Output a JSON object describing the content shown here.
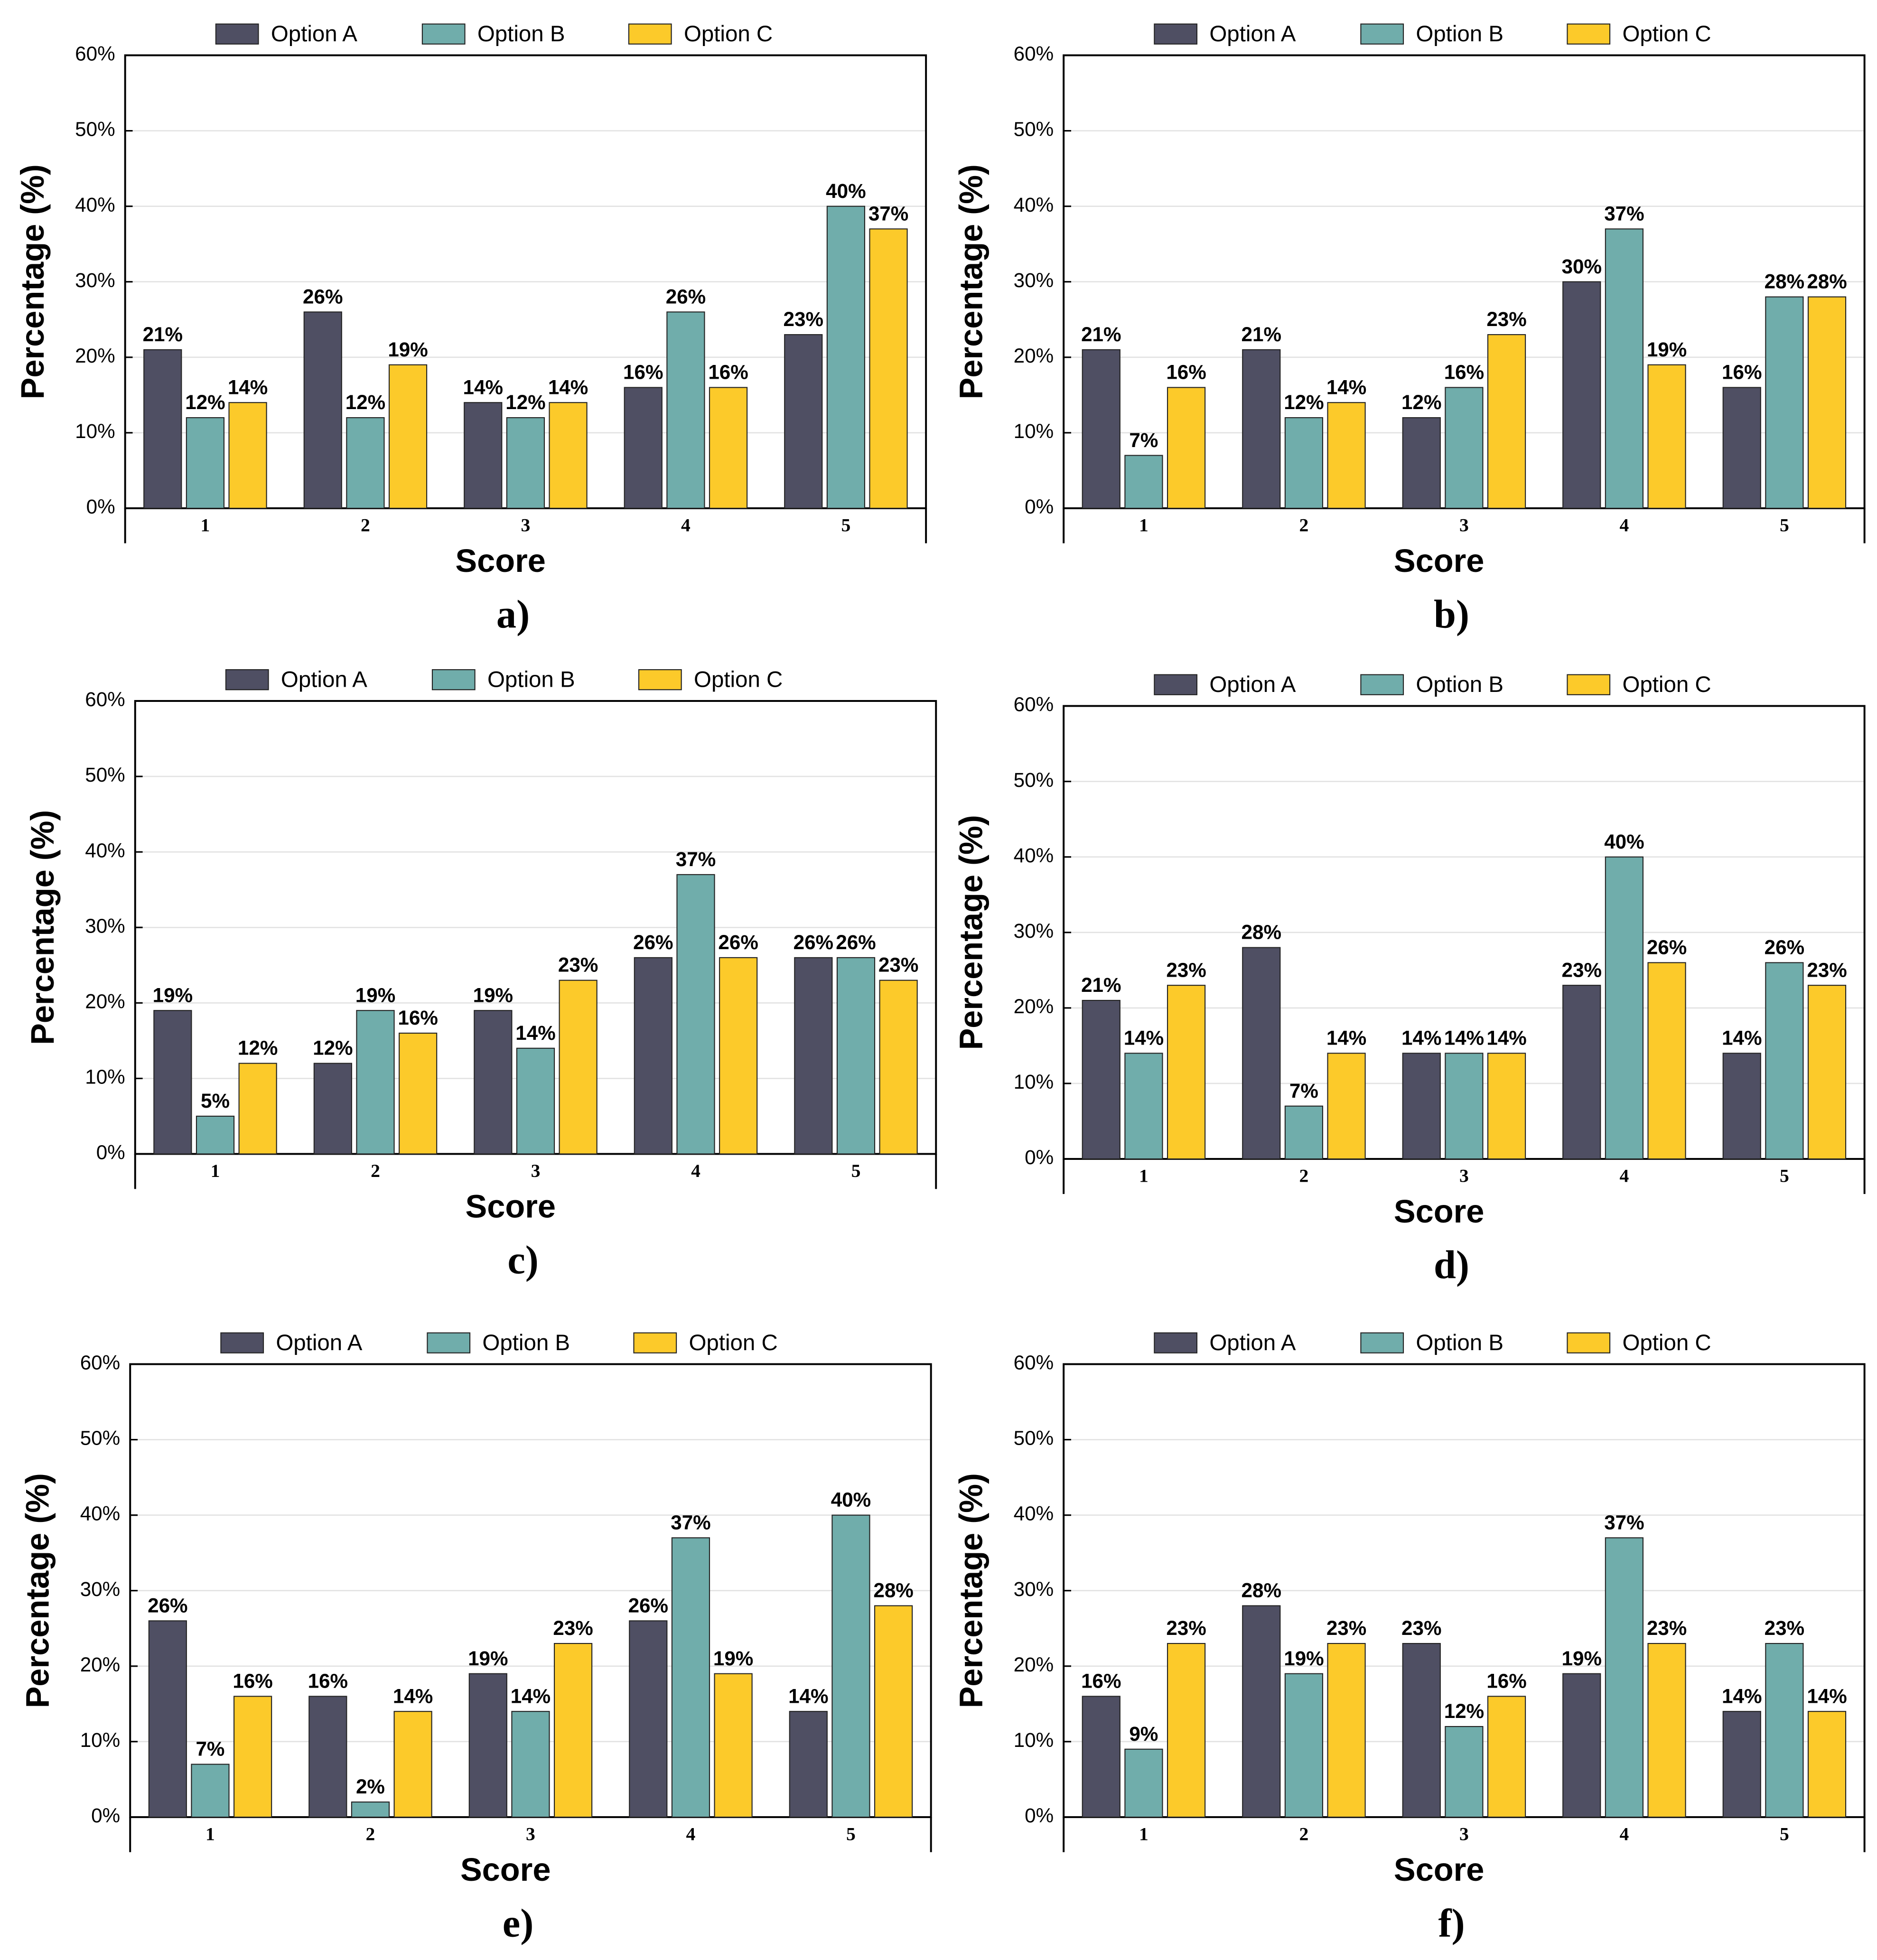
{
  "chart_data": [
    {
      "type": "bar",
      "panel": "a)",
      "xlabel": "Score",
      "ylabel": "Percentage (%)",
      "legend": "top",
      "grid": true,
      "categories": [
        "1",
        "2",
        "3",
        "4",
        "5"
      ],
      "ylim": [
        0,
        60
      ],
      "yticks": [
        {
          "value": 0,
          "label": "0%"
        },
        {
          "value": 10,
          "label": "10%"
        },
        {
          "value": 20,
          "label": "20%"
        },
        {
          "value": 30,
          "label": "30%"
        },
        {
          "value": 40,
          "label": "40%"
        },
        {
          "value": 50,
          "label": "50%"
        },
        {
          "value": 60,
          "label": "60%"
        }
      ],
      "series": [
        {
          "name": "Option A",
          "color": "#4f4f63",
          "values": [
            21,
            26,
            14,
            16,
            23
          ],
          "value_labels": [
            "21%",
            "26%",
            "14%",
            "16%",
            "23%"
          ]
        },
        {
          "name": "Option B",
          "color": "#70adab",
          "values": [
            12,
            12,
            12,
            26,
            40
          ],
          "value_labels": [
            "12%",
            "12%",
            "12%",
            "26%",
            "40%"
          ]
        },
        {
          "name": "Option C",
          "color": "#fcca2a",
          "values": [
            14,
            19,
            14,
            16,
            37
          ],
          "value_labels": [
            "14%",
            "19%",
            "14%",
            "16%",
            "37%"
          ]
        }
      ]
    },
    {
      "type": "bar",
      "panel": "b)",
      "xlabel": "Score",
      "ylabel": "Percentage (%)",
      "legend": "top",
      "grid": true,
      "categories": [
        "1",
        "2",
        "3",
        "4",
        "5"
      ],
      "ylim": [
        0,
        60
      ],
      "yticks": [
        {
          "value": 0,
          "label": "0%"
        },
        {
          "value": 10,
          "label": "10%"
        },
        {
          "value": 20,
          "label": "20%"
        },
        {
          "value": 30,
          "label": "30%"
        },
        {
          "value": 40,
          "label": "40%"
        },
        {
          "value": 50,
          "label": "50%"
        },
        {
          "value": 60,
          "label": "60%"
        }
      ],
      "series": [
        {
          "name": "Option A",
          "color": "#4f4f63",
          "values": [
            21,
            21,
            12,
            30,
            16
          ],
          "value_labels": [
            "21%",
            "21%",
            "12%",
            "30%",
            "16%"
          ]
        },
        {
          "name": "Option B",
          "color": "#70adab",
          "values": [
            7,
            12,
            16,
            37,
            28
          ],
          "value_labels": [
            "7%",
            "12%",
            "16%",
            "37%",
            "28%"
          ]
        },
        {
          "name": "Option C",
          "color": "#fcca2a",
          "values": [
            16,
            14,
            23,
            19,
            28
          ],
          "value_labels": [
            "16%",
            "14%",
            "23%",
            "19%",
            "28%"
          ]
        }
      ]
    },
    {
      "type": "bar",
      "panel": "c)",
      "xlabel": "Score",
      "ylabel": "Percentage (%)",
      "legend": "top",
      "grid": true,
      "categories": [
        "1",
        "2",
        "3",
        "4",
        "5"
      ],
      "ylim": [
        0,
        60
      ],
      "yticks": [
        {
          "value": 0,
          "label": "0%"
        },
        {
          "value": 10,
          "label": "10%"
        },
        {
          "value": 20,
          "label": "20%"
        },
        {
          "value": 30,
          "label": "30%"
        },
        {
          "value": 40,
          "label": "40%"
        },
        {
          "value": 50,
          "label": "50%"
        },
        {
          "value": 60,
          "label": "60%"
        }
      ],
      "series": [
        {
          "name": "Option A",
          "color": "#4f4f63",
          "values": [
            19,
            12,
            19,
            26,
            26
          ],
          "value_labels": [
            "19%",
            "12%",
            "19%",
            "26%",
            "26%"
          ]
        },
        {
          "name": "Option B",
          "color": "#70adab",
          "values": [
            5,
            19,
            14,
            37,
            26
          ],
          "value_labels": [
            "5%",
            "19%",
            "14%",
            "37%",
            "26%"
          ]
        },
        {
          "name": "Option C",
          "color": "#fcca2a",
          "values": [
            12,
            16,
            23,
            26,
            23
          ],
          "value_labels": [
            "12%",
            "16%",
            "23%",
            "26%",
            "23%"
          ]
        }
      ]
    },
    {
      "type": "bar",
      "panel": "d)",
      "xlabel": "Score",
      "ylabel": "Percentage (%)",
      "legend": "top",
      "grid": true,
      "categories": [
        "1",
        "2",
        "3",
        "4",
        "5"
      ],
      "ylim": [
        0,
        60
      ],
      "yticks": [
        {
          "value": 0,
          "label": "0%"
        },
        {
          "value": 10,
          "label": "10%"
        },
        {
          "value": 20,
          "label": "20%"
        },
        {
          "value": 30,
          "label": "30%"
        },
        {
          "value": 40,
          "label": "40%"
        },
        {
          "value": 50,
          "label": "50%"
        },
        {
          "value": 60,
          "label": "60%"
        }
      ],
      "series": [
        {
          "name": "Option A",
          "color": "#4f4f63",
          "values": [
            21,
            28,
            14,
            23,
            14
          ],
          "value_labels": [
            "21%",
            "28%",
            "14%",
            "23%",
            "14%"
          ]
        },
        {
          "name": "Option B",
          "color": "#70adab",
          "values": [
            14,
            7,
            14,
            40,
            26
          ],
          "value_labels": [
            "14%",
            "7%",
            "14%",
            "40%",
            "26%"
          ]
        },
        {
          "name": "Option C",
          "color": "#fcca2a",
          "values": [
            23,
            14,
            14,
            26,
            23
          ],
          "value_labels": [
            "23%",
            "14%",
            "14%",
            "26%",
            "23%"
          ]
        }
      ]
    },
    {
      "type": "bar",
      "panel": "e)",
      "xlabel": "Score",
      "ylabel": "Percentage (%)",
      "legend": "top",
      "grid": true,
      "categories": [
        "1",
        "2",
        "3",
        "4",
        "5"
      ],
      "ylim": [
        0,
        60
      ],
      "yticks": [
        {
          "value": 0,
          "label": "0%"
        },
        {
          "value": 10,
          "label": "10%"
        },
        {
          "value": 20,
          "label": "20%"
        },
        {
          "value": 30,
          "label": "30%"
        },
        {
          "value": 40,
          "label": "40%"
        },
        {
          "value": 50,
          "label": "50%"
        },
        {
          "value": 60,
          "label": "60%"
        }
      ],
      "series": [
        {
          "name": "Option A",
          "color": "#4f4f63",
          "values": [
            26,
            16,
            19,
            26,
            14
          ],
          "value_labels": [
            "26%",
            "16%",
            "19%",
            "26%",
            "14%"
          ]
        },
        {
          "name": "Option B",
          "color": "#70adab",
          "values": [
            7,
            2,
            14,
            37,
            40
          ],
          "value_labels": [
            "7%",
            "2%",
            "14%",
            "37%",
            "40%"
          ]
        },
        {
          "name": "Option C",
          "color": "#fcca2a",
          "values": [
            16,
            14,
            23,
            19,
            28
          ],
          "value_labels": [
            "16%",
            "14%",
            "23%",
            "19%",
            "28%"
          ]
        }
      ]
    },
    {
      "type": "bar",
      "panel": "f)",
      "xlabel": "Score",
      "ylabel": "Percentage (%)",
      "legend": "top",
      "grid": true,
      "categories": [
        "1",
        "2",
        "3",
        "4",
        "5"
      ],
      "ylim": [
        0,
        60
      ],
      "yticks": [
        {
          "value": 0,
          "label": "0%"
        },
        {
          "value": 10,
          "label": "10%"
        },
        {
          "value": 20,
          "label": "20%"
        },
        {
          "value": 30,
          "label": "30%"
        },
        {
          "value": 40,
          "label": "40%"
        },
        {
          "value": 50,
          "label": "50%"
        },
        {
          "value": 60,
          "label": "60%"
        }
      ],
      "series": [
        {
          "name": "Option A",
          "color": "#4f4f63",
          "values": [
            16,
            28,
            23,
            19,
            14
          ],
          "value_labels": [
            "16%",
            "28%",
            "23%",
            "19%",
            "14%"
          ]
        },
        {
          "name": "Option B",
          "color": "#70adab",
          "values": [
            9,
            19,
            12,
            37,
            23
          ],
          "value_labels": [
            "9%",
            "19%",
            "12%",
            "37%",
            "23%"
          ]
        },
        {
          "name": "Option C",
          "color": "#fcca2a",
          "values": [
            23,
            23,
            16,
            23,
            14
          ],
          "value_labels": [
            "23%",
            "23%",
            "16%",
            "23%",
            "14%"
          ]
        }
      ]
    }
  ]
}
